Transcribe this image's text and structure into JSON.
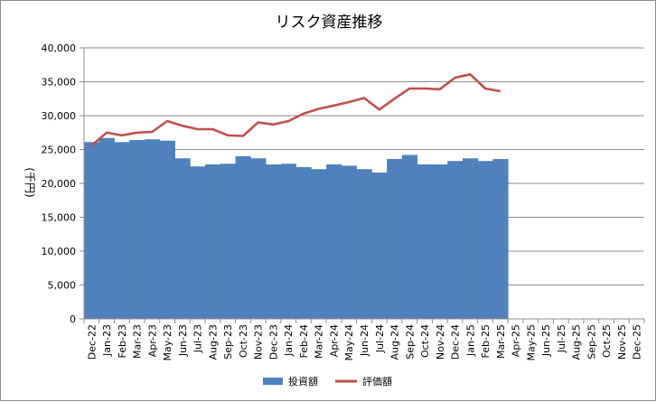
{
  "chart_data": {
    "type": "bar",
    "title": "リスク資産推移",
    "ylabel": "(千円)",
    "xlabel": "",
    "ylim": [
      0,
      40000
    ],
    "yticks": [
      0,
      5000,
      10000,
      15000,
      20000,
      25000,
      30000,
      35000,
      40000
    ],
    "ytick_labels": [
      "0",
      "5,000",
      "10,000",
      "15,000",
      "20,000",
      "25,000",
      "30,000",
      "35,000",
      "40,000"
    ],
    "grid": true,
    "legend_position": "bottom",
    "categories": [
      "Dec-22",
      "Jan-23",
      "Feb-23",
      "Mar-23",
      "Apr-23",
      "May-23",
      "Jun-23",
      "Jul-23",
      "Aug-23",
      "Sep-23",
      "Oct-23",
      "Nov-23",
      "Dec-23",
      "Jan-24",
      "Feb-24",
      "Mar-24",
      "Apr-24",
      "May-24",
      "Jun-24",
      "Jul-24",
      "Aug-24",
      "Sep-24",
      "Oct-24",
      "Nov-24",
      "Dec-24",
      "Jan-25",
      "Feb-25",
      "Mar-25",
      "Apr-25",
      "May-25",
      "Jun-25",
      "Jul-25",
      "Aug-25",
      "Sep-25",
      "Oct-25",
      "Nov-25",
      "Dec-25"
    ],
    "series": [
      {
        "name": "投資額",
        "type": "bar",
        "color": "#4f81bd",
        "values": [
          26100,
          26700,
          26100,
          26400,
          26500,
          26300,
          23700,
          22500,
          22800,
          22900,
          24000,
          23700,
          22800,
          22900,
          22400,
          22100,
          22800,
          22600,
          22100,
          21600,
          23600,
          24200,
          22800,
          22800,
          23300,
          23700,
          23300,
          23600,
          null,
          null,
          null,
          null,
          null,
          null,
          null,
          null,
          null
        ]
      },
      {
        "name": "評価額",
        "type": "line",
        "color": "#c0504d",
        "values": [
          25600,
          27500,
          27100,
          27500,
          27600,
          29200,
          28500,
          28000,
          28000,
          27100,
          27000,
          29000,
          28700,
          29200,
          30300,
          31000,
          31500,
          32000,
          32600,
          30900,
          32500,
          34000,
          34000,
          33900,
          35600,
          36100,
          34000,
          33600,
          null,
          null,
          null,
          null,
          null,
          null,
          null,
          null,
          null
        ]
      }
    ]
  }
}
